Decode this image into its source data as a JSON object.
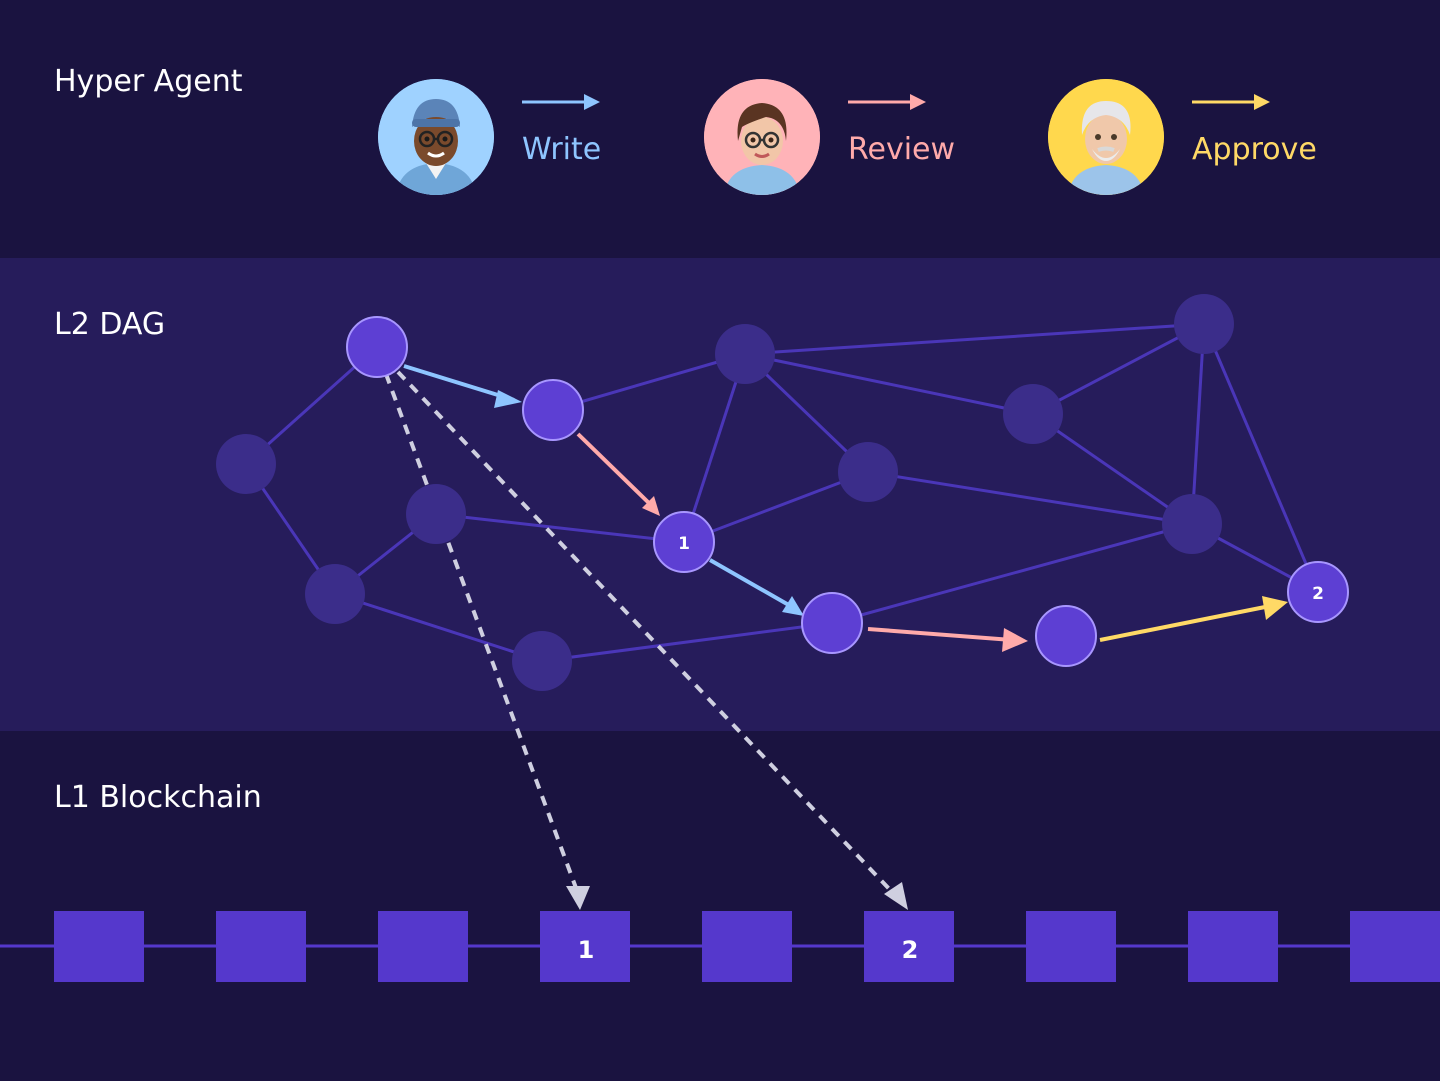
{
  "sections": {
    "agent_title": "Hyper Agent",
    "dag_title": "L2 DAG",
    "chain_title": "L1 Blockchain"
  },
  "agents": [
    {
      "role": "Write",
      "color": "#8ec5ff",
      "avatar_bg": "#9fd2ff",
      "avatar_icon": "developer-avatar-icon"
    },
    {
      "role": "Review",
      "color": "#ffaaaa",
      "avatar_bg": "#ffb3b8",
      "avatar_icon": "reviewer-avatar-icon"
    },
    {
      "role": "Approve",
      "color": "#ffd966",
      "avatar_bg": "#ffd84d",
      "avatar_icon": "approver-avatar-icon"
    }
  ],
  "dag": {
    "markers": [
      "1",
      "2"
    ]
  },
  "blockchain": {
    "markers": [
      "1",
      "2"
    ]
  },
  "colors": {
    "background_dark": "#1a1340",
    "dag_band": "#261c5b",
    "node_active": "#5d3fd3",
    "node_inactive": "#3b2d8a",
    "edge": "#4a36b8",
    "block": "#5538cc",
    "dashed_arrow": "#cfcfe0"
  }
}
